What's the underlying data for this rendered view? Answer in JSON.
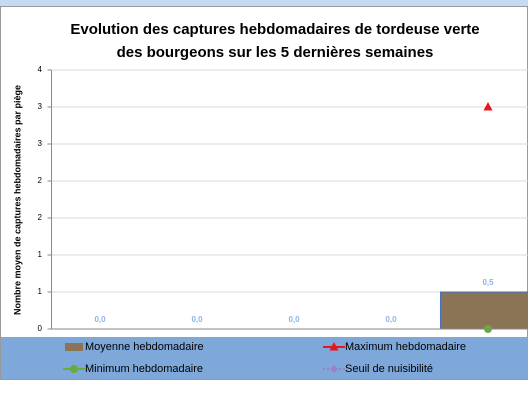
{
  "chart_data": {
    "type": "bar",
    "title": [
      "Evolution des captures hebdomadaires de tordeuse verte",
      "des bourgeons sur les 5 dernières semaines"
    ],
    "y_label": "Nombre moyen de captures hebdomadaires par piège",
    "categories": [
      null,
      null,
      null,
      null,
      null
    ],
    "series": [
      {
        "name": "Moyenne hebdomadaire",
        "type": "bar",
        "color": "#8b7355",
        "values": [
          0,
          0,
          0,
          0,
          0.5
        ],
        "value_labels": [
          "0,0",
          "0,0",
          "0,0",
          "0,0",
          "0,5"
        ]
      },
      {
        "name": "Maximum hebdomadaire",
        "type": "line",
        "marker": "triangle",
        "color": "#e8161b",
        "values": [
          null,
          null,
          null,
          null,
          3
        ]
      },
      {
        "name": "Minimum hebdomadaire",
        "type": "line",
        "marker": "circle",
        "color": "#6aac3a",
        "values": [
          null,
          null,
          null,
          null,
          0
        ]
      },
      {
        "name": "Seuil de nuisibilité",
        "type": "line",
        "marker": "diamond",
        "dash": true,
        "color": "#9b80c8",
        "values": [
          null,
          null,
          null,
          null,
          null
        ]
      }
    ],
    "ylim": [
      0,
      3.5
    ],
    "yticks": [
      0,
      {
        "value": 0.5,
        "label": "1"
      },
      1,
      {
        "value": 1.5,
        "label": "2"
      },
      2,
      {
        "value": 2.5,
        "label": "3"
      },
      3,
      {
        "value": 3.5,
        "label": "4"
      }
    ],
    "grid": true
  }
}
